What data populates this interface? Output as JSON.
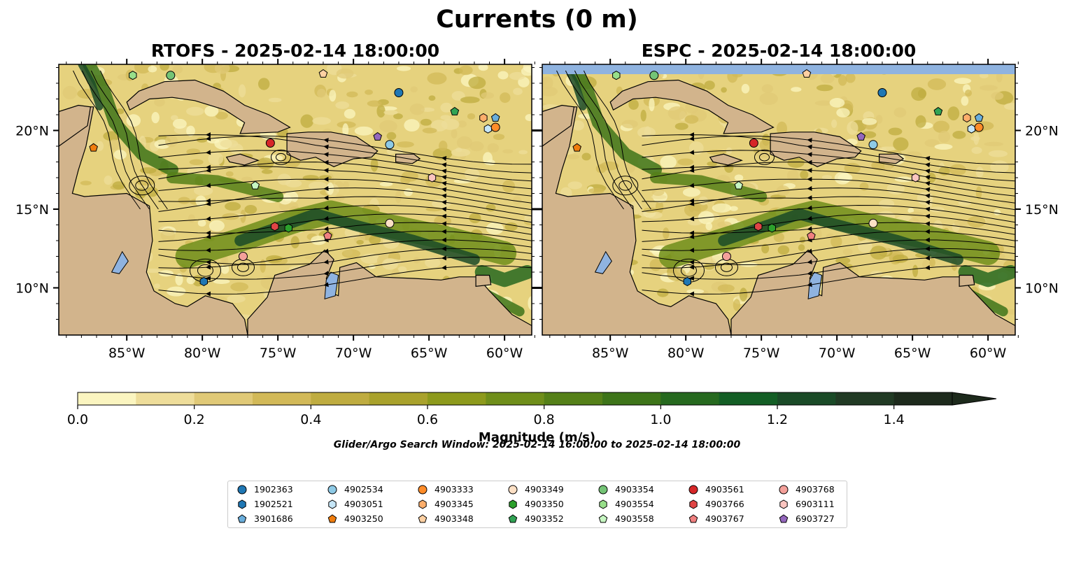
{
  "title": "Currents (0 m)",
  "panels": [
    {
      "title": "RTOFS - 2025-02-14 18:00:00"
    },
    {
      "title": "ESPC - 2025-02-14 18:00:00"
    }
  ],
  "colorbar": {
    "label": "Magnitude (m/s)",
    "ticks": [
      "0.0",
      "0.2",
      "0.4",
      "0.6",
      "0.8",
      "1.0",
      "1.2",
      "1.4"
    ],
    "levels": [
      0.0,
      0.1,
      0.2,
      0.3,
      0.4,
      0.5,
      0.6,
      0.7,
      0.8,
      0.9,
      1.0,
      1.1,
      1.2,
      1.3,
      1.4,
      1.5
    ],
    "colors": [
      "#fbf5c0",
      "#eedd9a",
      "#e0c977",
      "#d2b958",
      "#bfac40",
      "#a9a22c",
      "#8d9a1c",
      "#6f8e1a",
      "#558018",
      "#3d7419",
      "#26691f",
      "#135e25",
      "#1a4a27",
      "#213a24",
      "#1d2a1c"
    ],
    "extend": "max"
  },
  "search_window": "Glider/Argo Search Window: 2025-02-14 16:00:00 to 2025-02-14 18:00:00",
  "chart_data": {
    "type": "map",
    "lon_ticks": [
      "85°W",
      "80°W",
      "75°W",
      "70°W",
      "65°W",
      "60°W"
    ],
    "lat_ticks": [
      "10°N",
      "15°N",
      "20°N"
    ],
    "lon_range": [
      -89.5,
      -58.2
    ],
    "lat_range": [
      7.0,
      24.2
    ],
    "floats": [
      {
        "id": "1902363",
        "color": "#1f77b4",
        "marker": "circle",
        "lon": -67.0,
        "lat": 22.4
      },
      {
        "id": "1902521",
        "color": "#1f77b4",
        "marker": "hexagon",
        "lon": -79.9,
        "lat": 10.4
      },
      {
        "id": "3901686",
        "color": "#6aaedc",
        "marker": "pentagon",
        "lon": -60.6,
        "lat": 20.8
      },
      {
        "id": "4902534",
        "color": "#8ecae6",
        "marker": "circle",
        "lon": -67.6,
        "lat": 19.1
      },
      {
        "id": "4903051",
        "color": "#c6e6f7",
        "marker": "hexagon",
        "lon": -61.1,
        "lat": 20.1
      },
      {
        "id": "4903250",
        "color": "#f07d0e",
        "marker": "pentagon",
        "lon": -87.2,
        "lat": 18.9
      },
      {
        "id": "4903333",
        "color": "#ff8c29",
        "marker": "circle",
        "lon": -60.6,
        "lat": 20.2
      },
      {
        "id": "4903345",
        "color": "#fdae6b",
        "marker": "hexagon",
        "lon": -61.4,
        "lat": 20.8
      },
      {
        "id": "4903348",
        "color": "#fdd0a2",
        "marker": "pentagon",
        "lon": -72.0,
        "lat": 23.6
      },
      {
        "id": "4903349",
        "color": "#fde0c5",
        "marker": "circle",
        "lon": -67.6,
        "lat": 14.1
      },
      {
        "id": "4903350",
        "color": "#2ca02c",
        "marker": "hexagon",
        "lon": -74.3,
        "lat": 13.8
      },
      {
        "id": "4903352",
        "color": "#31a354",
        "marker": "pentagon",
        "lon": -63.3,
        "lat": 21.2
      },
      {
        "id": "4903354",
        "color": "#74c476",
        "marker": "circle",
        "lon": -82.1,
        "lat": 23.5
      },
      {
        "id": "4903554",
        "color": "#98df8a",
        "marker": "hexagon",
        "lon": -84.6,
        "lat": 23.5
      },
      {
        "id": "4903558",
        "color": "#c7f6c2",
        "marker": "pentagon",
        "lon": -76.5,
        "lat": 16.5
      },
      {
        "id": "4903561",
        "color": "#d62728",
        "marker": "circle",
        "lon": -75.5,
        "lat": 19.2
      },
      {
        "id": "4903766",
        "color": "#e04545",
        "marker": "hexagon",
        "lon": -75.2,
        "lat": 13.9
      },
      {
        "id": "4903767",
        "color": "#f08080",
        "marker": "pentagon",
        "lon": -71.7,
        "lat": 13.3
      },
      {
        "id": "4903768",
        "color": "#f4a09a",
        "marker": "circle",
        "lon": -77.3,
        "lat": 12.0
      },
      {
        "id": "6903111",
        "color": "#fbc5c0",
        "marker": "hexagon",
        "lon": -64.8,
        "lat": 17.0
      },
      {
        "id": "6903727",
        "color": "#9467bd",
        "marker": "pentagon",
        "lon": -68.4,
        "lat": 19.6
      }
    ]
  }
}
